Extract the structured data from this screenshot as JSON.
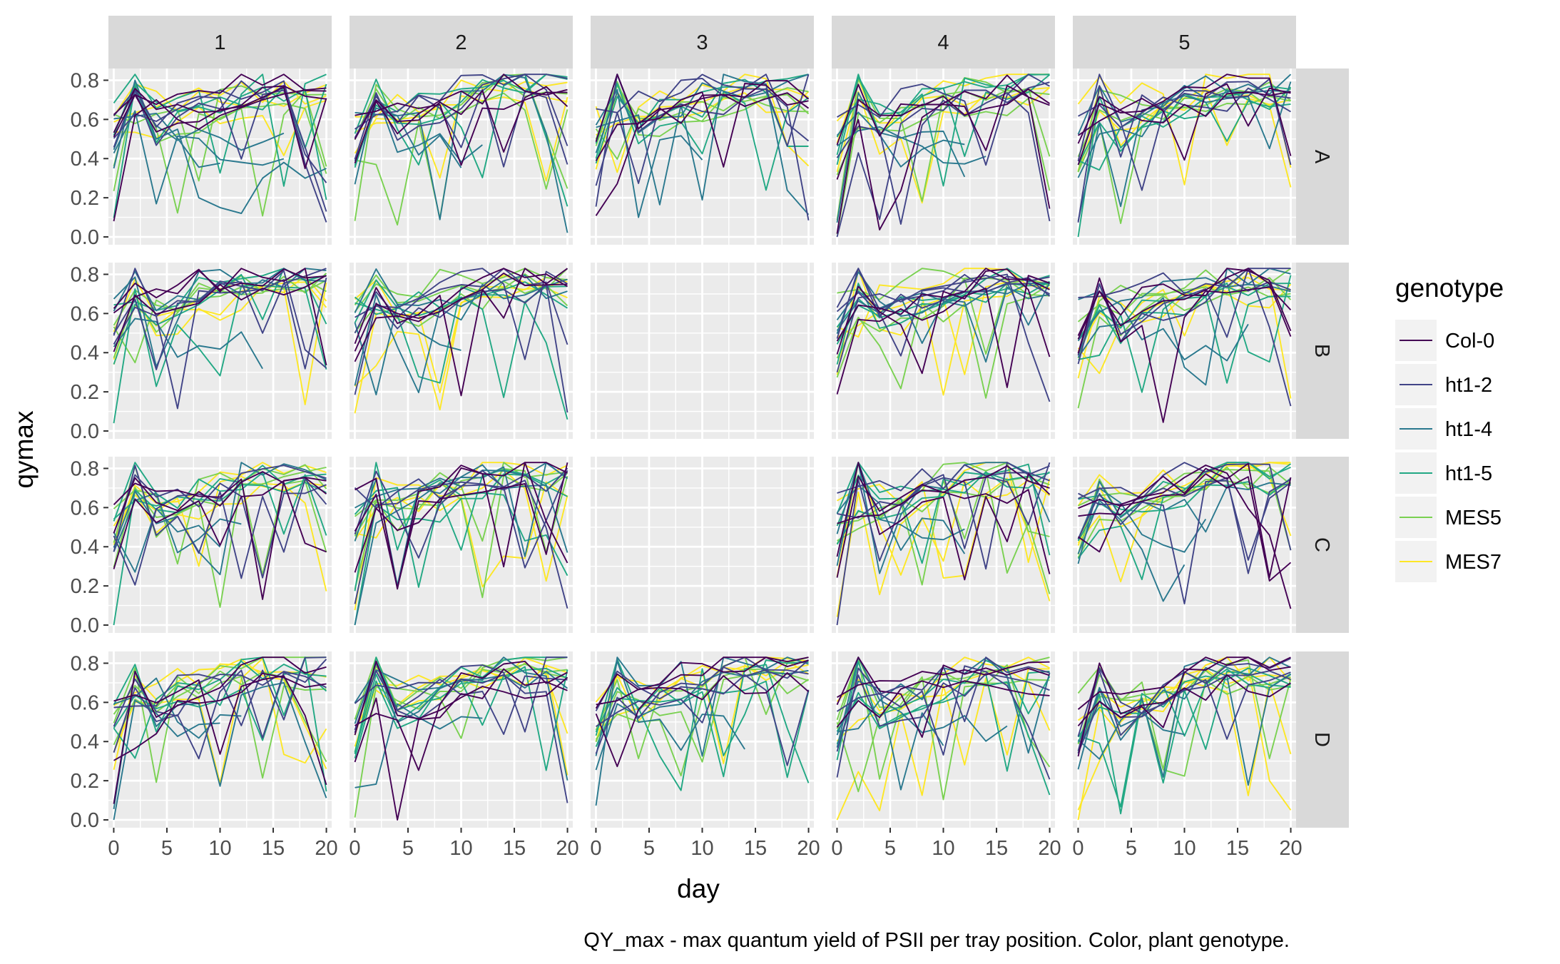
{
  "chart_data": {
    "type": "line",
    "facet_columns": [
      "1",
      "2",
      "3",
      "4",
      "5"
    ],
    "facet_rows": [
      "A",
      "B",
      "C",
      "D"
    ],
    "empty_panels": [
      "B-3",
      "C-3"
    ],
    "xlabel": "day",
    "ylabel": "qymax",
    "caption": "QY_max - max quantum yield of PSII per tray position. Color, plant genotype.",
    "xlim": [
      -0.5,
      20.5
    ],
    "ylim": [
      -0.04,
      0.86
    ],
    "x_ticks": [
      0,
      5,
      10,
      15,
      20
    ],
    "y_ticks": [
      0.0,
      0.2,
      0.4,
      0.6,
      0.8
    ],
    "x_tick_labels": [
      "0",
      "5",
      "10",
      "15",
      "20"
    ],
    "y_tick_labels": [
      "0.0",
      "0.2",
      "0.4",
      "0.6",
      "0.8"
    ],
    "days": [
      0,
      2,
      4,
      6,
      8,
      10,
      12,
      14,
      16,
      18,
      20
    ],
    "legend": {
      "title": "genotype",
      "position": "right",
      "entries": [
        {
          "name": "Col-0",
          "color": "#440154"
        },
        {
          "name": "ht1-2",
          "color": "#414487"
        },
        {
          "name": "ht1-4",
          "color": "#2a788e"
        },
        {
          "name": "ht1-5",
          "color": "#22a884"
        },
        {
          "name": "MES5",
          "color": "#7ad151"
        },
        {
          "name": "MES7",
          "color": "#fde725"
        }
      ]
    },
    "series_per_genotype_per_panel": 3,
    "representative_series": [
      {
        "panel": "A-1",
        "genotype": "Col-0",
        "values": [
          0.08,
          0.62,
          0.7,
          0.6,
          0.55,
          0.62,
          0.66,
          0.7,
          0.73,
          0.75,
          0.76
        ]
      },
      {
        "panel": "A-1",
        "genotype": "ht1-4",
        "values": [
          0.35,
          0.8,
          0.5,
          0.55,
          0.2,
          0.15,
          0.12,
          0.3,
          0.38,
          0.3,
          0.35
        ]
      },
      {
        "panel": "B-4",
        "genotype": "ht1-2",
        "values": [
          0.3,
          0.68,
          0.7,
          0.66,
          0.72,
          0.74,
          0.76,
          0.78,
          0.8,
          0.45,
          0.15
        ]
      },
      {
        "panel": "D-5",
        "genotype": "MES7",
        "values": [
          0.05,
          0.3,
          0.5,
          0.6,
          0.65,
          0.7,
          0.72,
          0.75,
          0.78,
          0.2,
          0.05
        ]
      }
    ]
  }
}
